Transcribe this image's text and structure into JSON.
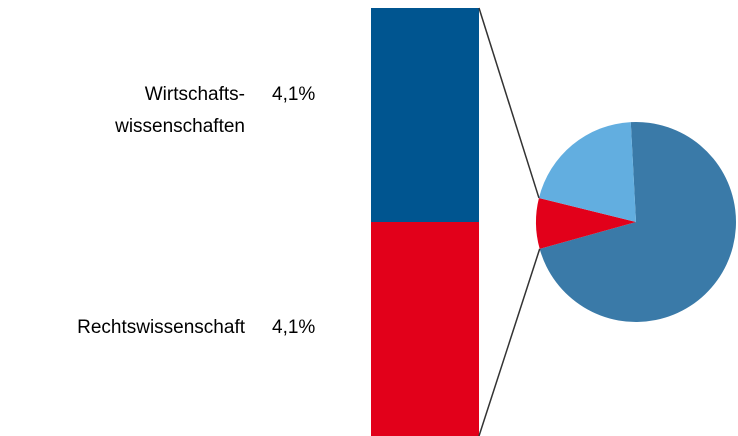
{
  "chart_data": [
    {
      "type": "bar",
      "categories": [
        [
          "Wirtschafts-",
          "wissenschaften"
        ],
        [
          "Rechtswissenschaft"
        ]
      ],
      "values": [
        4.1,
        4.1
      ],
      "value_labels": [
        "4,1%",
        "4,1%"
      ],
      "colors": [
        "#005590",
        "#e2001a"
      ]
    },
    {
      "type": "pie",
      "values": [
        71.5,
        8.2,
        20.3
      ],
      "colors": [
        "#3a7aa8",
        "#e2001a",
        "#62aee0"
      ]
    }
  ]
}
